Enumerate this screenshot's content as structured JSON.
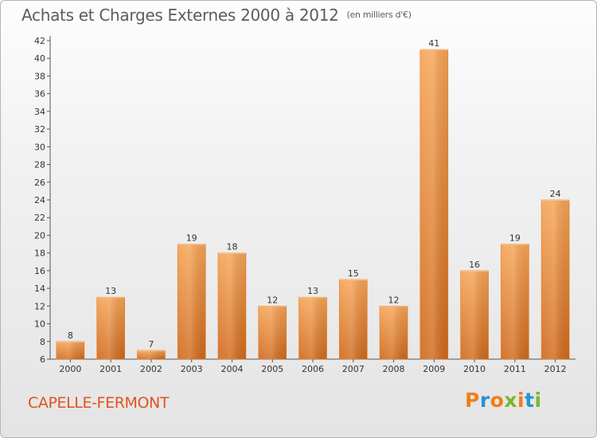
{
  "chart_data": {
    "type": "bar",
    "title": "Achats et Charges Externes 2000 à 2012",
    "subtitle": "(en milliers d'€)",
    "categories": [
      "2000",
      "2001",
      "2002",
      "2003",
      "2004",
      "2005",
      "2006",
      "2007",
      "2008",
      "2009",
      "2010",
      "2011",
      "2012"
    ],
    "values": [
      8,
      13,
      7,
      19,
      18,
      12,
      13,
      15,
      12,
      41,
      16,
      19,
      24
    ],
    "ylim": [
      6,
      42
    ],
    "yticks": [
      6,
      8,
      10,
      12,
      14,
      16,
      18,
      20,
      22,
      24,
      26,
      28,
      30,
      32,
      34,
      36,
      38,
      40,
      42
    ],
    "grid": false,
    "bar_color": "#f08a2c"
  },
  "place_name": "CAPELLE-FERMONT",
  "logo": {
    "letters": [
      "P",
      "r",
      "o",
      "x",
      "i",
      "t",
      "i"
    ],
    "colors": [
      "#f07d1b",
      "#2a93d5",
      "#f07d1b",
      "#76b82a",
      "#f07d1b",
      "#2a93d5",
      "#76b82a"
    ]
  }
}
